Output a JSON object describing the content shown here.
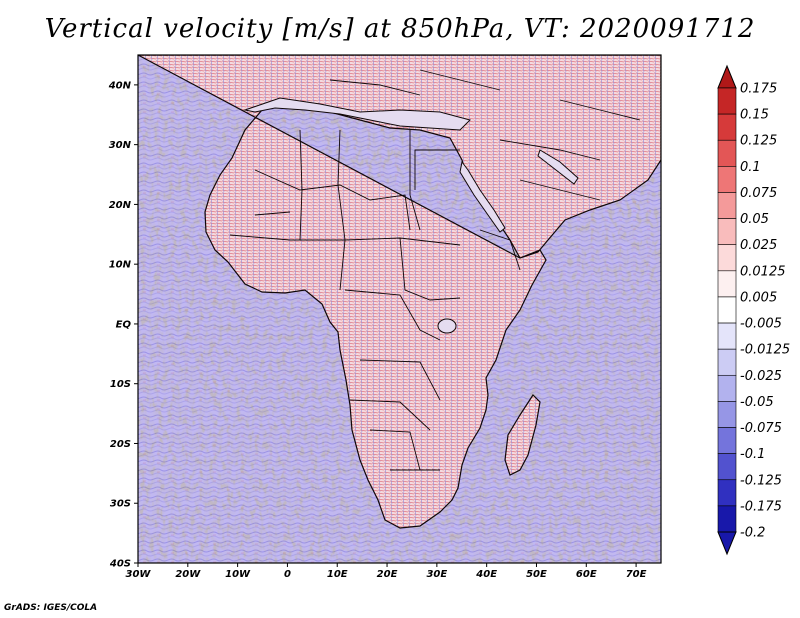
{
  "title": "Vertical velocity [m/s] at 850hPa, VT: 2020091712",
  "credit": "GrADS: IGES/COLA",
  "map": {
    "lat_labels": [
      "40N",
      "30N",
      "20N",
      "10N",
      "EQ",
      "10S",
      "20S",
      "30S",
      "40S"
    ],
    "lon_labels": [
      "30W",
      "20W",
      "10W",
      "0",
      "10E",
      "20E",
      "30E",
      "40E",
      "50E",
      "60E",
      "70E"
    ],
    "lon_range": [
      -30,
      75
    ],
    "lat_range": [
      -40,
      45
    ]
  },
  "colorbar": {
    "labels": [
      "0.175",
      "0.15",
      "0.125",
      "0.1",
      "0.075",
      "0.05",
      "0.025",
      "0.0125",
      "0.005",
      "-0.005",
      "-0.0125",
      "-0.025",
      "-0.05",
      "-0.075",
      "-0.1",
      "-0.125",
      "-0.175",
      "-0.2"
    ],
    "colors": [
      "#b01818",
      "#c52626",
      "#d63a3a",
      "#e35656",
      "#ee7676",
      "#f49a9a",
      "#f9bcbc",
      "#fcdada",
      "#fdf0f0",
      "#ffffff",
      "#e4e4fa",
      "#ccccf4",
      "#b2b2ee",
      "#9696e6",
      "#7474dc",
      "#5252cf",
      "#3030c0",
      "#1818aa"
    ]
  }
}
